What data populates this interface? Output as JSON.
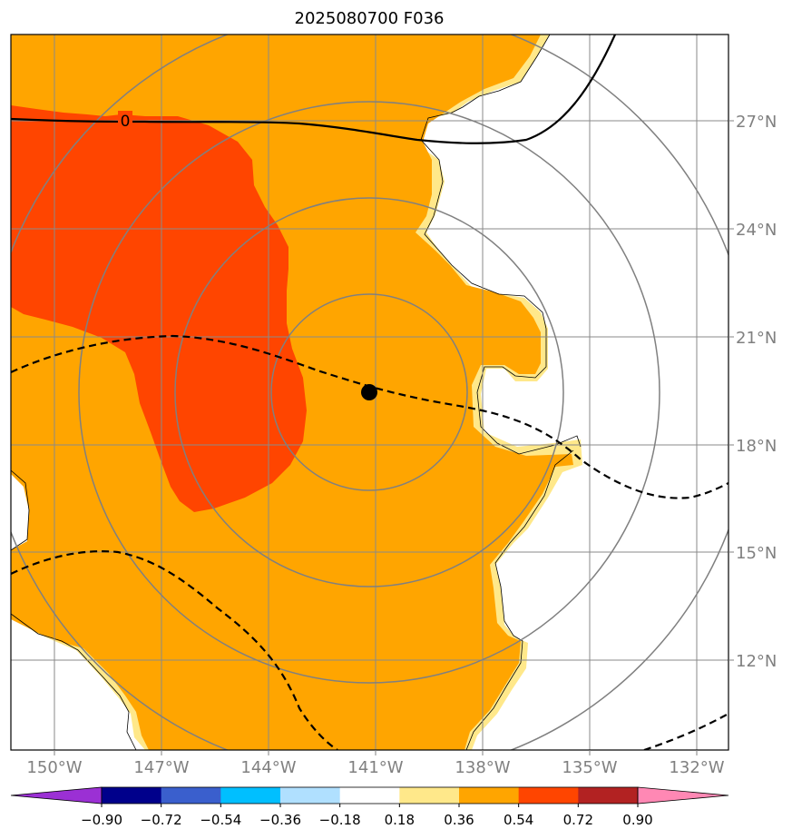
{
  "title": "2025080700 F036",
  "contour_label": "0",
  "map": {
    "lon_ticks": [
      "150°W",
      "147°W",
      "144°W",
      "141°W",
      "138°W",
      "135°W",
      "132°W"
    ],
    "lat_ticks": [
      "27°N",
      "24°N",
      "21°N",
      "18°N",
      "15°N",
      "12°N"
    ],
    "storm_center": {
      "lon": -141.0,
      "lat": 19.5
    },
    "range_rings": 4,
    "fill_colors": {
      "0.18_0.36": "#ffe88a",
      "0.36_0.54": "#ffa500",
      "0.54_0.72": "#ff4500",
      "land_line": "#000000"
    }
  },
  "colorbar": {
    "levels": [
      "−0.90",
      "−0.72",
      "−0.54",
      "−0.36",
      "−0.18",
      "0.18",
      "0.36",
      "0.54",
      "0.72",
      "0.90"
    ],
    "colors": [
      "#9b30d4",
      "#00008b",
      "#3a5fcd",
      "#00bfff",
      "#b0e0ff",
      "#ffffff",
      "#ffe88a",
      "#ffa500",
      "#ff4500",
      "#b22222",
      "#ff88b4"
    ]
  }
}
